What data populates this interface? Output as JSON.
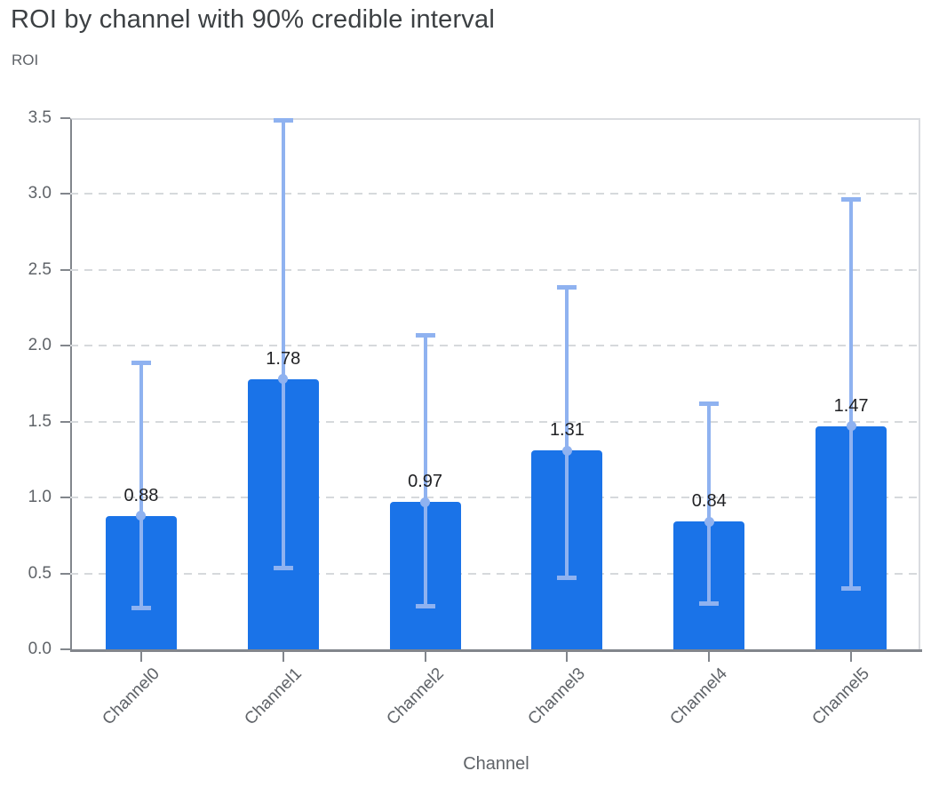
{
  "header": {
    "title": "ROI by channel with 90% credible interval",
    "y_axis_title": "ROI"
  },
  "colors": {
    "bar": "#1a73e8",
    "error_bar": "#8fb2f0",
    "grid": "#d6d9dc",
    "axis": "#82868c",
    "plot_border": "#dadce0",
    "title_text": "#3c4043",
    "muted_text": "#5f6368",
    "value_text": "#202124"
  },
  "chart_data": {
    "type": "bar",
    "title": "ROI by channel with 90% credible interval",
    "xlabel": "Channel",
    "ylabel": "ROI",
    "ylim": [
      0,
      3.5
    ],
    "y_tick_labels": [
      "0.0",
      "0.5",
      "1.0",
      "1.5",
      "2.0",
      "2.5",
      "3.0",
      "3.5"
    ],
    "grid": "horizontal-dashed",
    "legend": "none",
    "categories": [
      "Channel0",
      "Channel1",
      "Channel2",
      "Channel3",
      "Channel4",
      "Channel5"
    ],
    "values": [
      0.88,
      1.78,
      0.97,
      1.31,
      0.84,
      1.47
    ],
    "value_labels": [
      "0.88",
      "1.78",
      "0.97",
      "1.31",
      "0.84",
      "1.47"
    ],
    "ci_90_low": [
      0.27,
      0.53,
      0.28,
      0.47,
      0.3,
      0.4
    ],
    "ci_90_high": [
      1.89,
      3.49,
      2.07,
      2.39,
      1.62,
      2.97
    ],
    "error_bar_style": "light-blue line with caps and mean dot at bar top"
  }
}
